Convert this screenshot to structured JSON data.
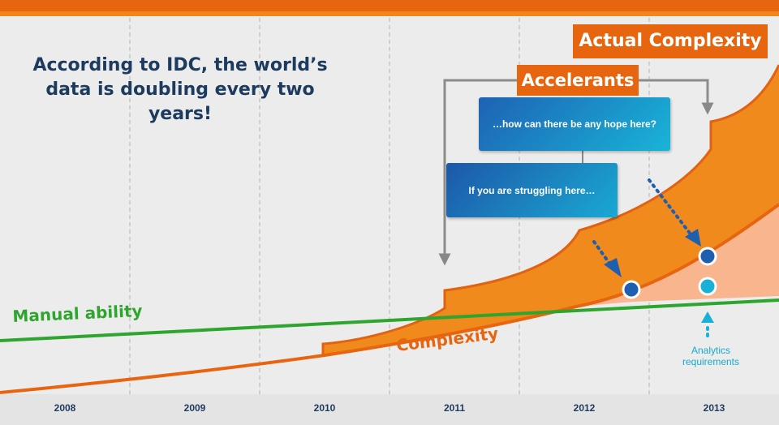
{
  "headline": "According to IDC, the world’s data is doubling every two years!",
  "labels": {
    "actual_complexity": "Actual Complexity",
    "accelerants": "Accelerants",
    "manual_ability": "Manual ability",
    "complexity": "Complexity",
    "analytics_requirements_line1": "Analytics",
    "analytics_requirements_line2": "requirements"
  },
  "bubbles": {
    "upper": "…how can there be any hope here?",
    "lower": "If you are struggling here…"
  },
  "years": [
    "2008",
    "2009",
    "2010",
    "2011",
    "2012",
    "2013"
  ],
  "colors": {
    "orange": "#e8650f",
    "area_orange": "#f08a1c",
    "peach": "#f9b68e",
    "green": "#2ea52e",
    "navy": "#1d3a5f",
    "dark_blue": "#1e5fb0",
    "cyan": "#19b2d6",
    "background": "#ececec"
  }
}
